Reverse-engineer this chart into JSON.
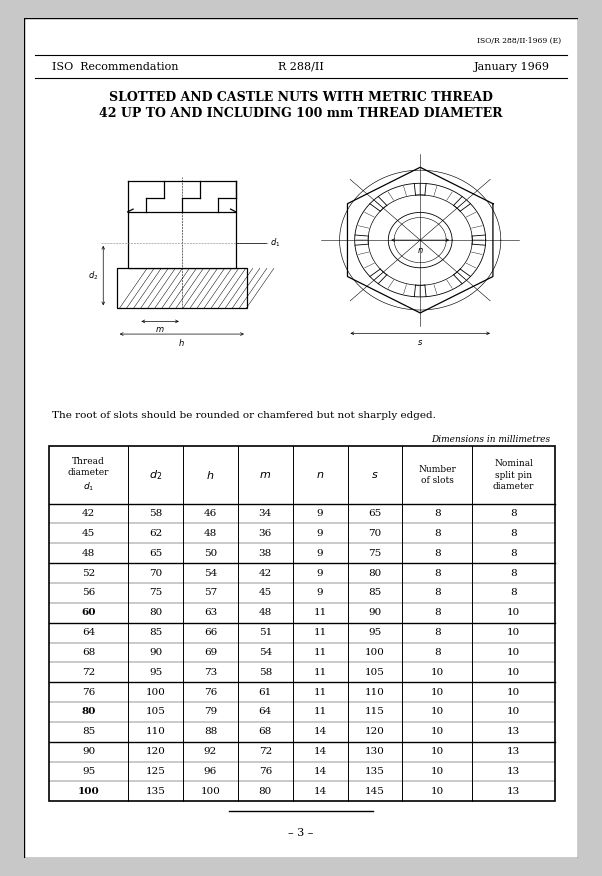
{
  "doc_ref": "ISO/R 288/II·1969 (E)",
  "header_left": "ISO  Recommendation",
  "header_center": "R 288/II",
  "header_right": "January 1969",
  "title1": "SLOTTED AND CASTLE NUTS WITH METRIC THREAD",
  "title2": "42 UP TO AND INCLUDING 100 mm THREAD DIAMETER",
  "note": "The root of slots should be rounded or chamfered but not sharply edged.",
  "dim_note": "Dimensions in millimetres",
  "page_num": "– 3 –",
  "col_headers": [
    "Thread\ndiameter\nd₁",
    "d₂",
    "h",
    "m",
    "n",
    "s",
    "Number\nof slots",
    "Nominal\nsplit pin\ndiameter"
  ],
  "table_data": [
    [
      "42",
      "58",
      "46",
      "34",
      "9",
      "65",
      "8",
      "8"
    ],
    [
      "45",
      "62",
      "48",
      "36",
      "9",
      "70",
      "8",
      "8"
    ],
    [
      "48",
      "65",
      "50",
      "38",
      "9",
      "75",
      "8",
      "8"
    ],
    [
      "52",
      "70",
      "54",
      "42",
      "9",
      "80",
      "8",
      "8"
    ],
    [
      "56",
      "75",
      "57",
      "45",
      "9",
      "85",
      "8",
      "8"
    ],
    [
      "60",
      "80",
      "63",
      "48",
      "11",
      "90",
      "8",
      "10"
    ],
    [
      "64",
      "85",
      "66",
      "51",
      "11",
      "95",
      "8",
      "10"
    ],
    [
      "68",
      "90",
      "69",
      "54",
      "11",
      "100",
      "8",
      "10"
    ],
    [
      "72",
      "95",
      "73",
      "58",
      "11",
      "105",
      "10",
      "10"
    ],
    [
      "76",
      "100",
      "76",
      "61",
      "11",
      "110",
      "10",
      "10"
    ],
    [
      "80",
      "105",
      "79",
      "64",
      "11",
      "115",
      "10",
      "10"
    ],
    [
      "85",
      "110",
      "88",
      "68",
      "14",
      "120",
      "10",
      "13"
    ],
    [
      "90",
      "120",
      "92",
      "72",
      "14",
      "130",
      "10",
      "13"
    ],
    [
      "95",
      "125",
      "96",
      "76",
      "14",
      "135",
      "10",
      "13"
    ],
    [
      "100",
      "135",
      "100",
      "80",
      "14",
      "145",
      "10",
      "13"
    ]
  ],
  "bold_d1": [
    false,
    false,
    false,
    false,
    false,
    true,
    false,
    false,
    false,
    false,
    true,
    false,
    false,
    false,
    true
  ],
  "group_breaks": [
    3,
    6,
    9,
    12
  ]
}
